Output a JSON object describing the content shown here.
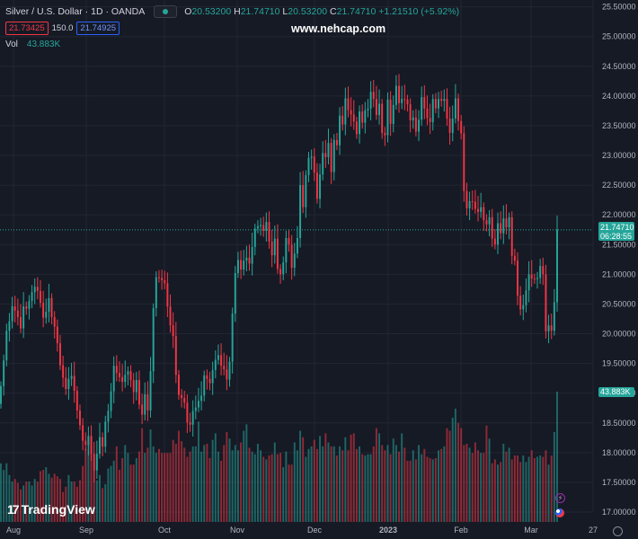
{
  "header": {
    "title": "Silver / U.S. Dollar · 1D · OANDA",
    "ohlc": {
      "open_label": "O",
      "open": "20.53200",
      "high_label": "H",
      "high": "21.74710",
      "low_label": "L",
      "low": "20.53200",
      "close_label": "C",
      "close": "21.74710",
      "change": "+1.21510 (+5.92%)"
    },
    "sell_price": "21.73425",
    "spread": "150.0",
    "buy_price": "21.74925",
    "vol_label": "Vol",
    "vol_value": "43.883K"
  },
  "watermark": "www.nehcap.com",
  "logo_text": "TradingView",
  "tags": {
    "price": "21.74710",
    "countdown": "06:28:55",
    "volume": "43.883K"
  },
  "colors": {
    "up": "#26a69a",
    "down": "#f23645",
    "background": "#161a25",
    "grid": "#232632",
    "axis_text": "#b2b5be"
  },
  "chart_data": {
    "type": "candlestick",
    "title": "Silver / U.S. Dollar · 1D · OANDA",
    "ylim": [
      17.0,
      25.6
    ],
    "y_ticks": [
      "25.50000",
      "25.00000",
      "24.50000",
      "24.00000",
      "23.50000",
      "23.00000",
      "22.50000",
      "22.00000",
      "21.50000",
      "21.00000",
      "20.50000",
      "20.00000",
      "19.50000",
      "19.00000",
      "18.50000",
      "18.00000",
      "17.50000",
      "17.00000"
    ],
    "x_ticks": [
      "Aug",
      "Sep",
      "Oct",
      "Nov",
      "Dec",
      "2023",
      "Feb",
      "Mar",
      "27"
    ],
    "last_price": 21.7471,
    "last_volume": 43883,
    "closes": [
      19.12,
      19.55,
      20.05,
      20.21,
      20.46,
      20.39,
      20.28,
      20.09,
      20.46,
      20.42,
      20.55,
      20.7,
      20.79,
      20.72,
      20.52,
      20.27,
      20.37,
      20.6,
      20.28,
      20.12,
      19.84,
      19.47,
      19.26,
      19.07,
      19.24,
      19.29,
      19.04,
      18.71,
      18.46,
      18.2,
      18.13,
      18.28,
      17.98,
      17.7,
      17.98,
      18.26,
      18.1,
      18.52,
      18.7,
      19.03,
      19.46,
      19.34,
      19.27,
      19.19,
      19.31,
      19.37,
      19.22,
      19.02,
      19.22,
      18.81,
      18.64,
      18.98,
      18.71,
      19.37,
      20.43,
      20.95,
      20.94,
      20.9,
      20.85,
      20.46,
      20.14,
      19.96,
      19.31,
      18.97,
      18.92,
      18.84,
      18.51,
      18.47,
      18.7,
      18.76,
      18.87,
      18.96,
      19.3,
      19.24,
      19.17,
      19.39,
      19.56,
      19.64,
      19.46,
      19.4,
      19.23,
      19.53,
      20.34,
      21.02,
      21.24,
      21.08,
      21.23,
      21.28,
      21.18,
      21.46,
      21.77,
      21.81,
      21.83,
      21.73,
      21.88,
      21.55,
      21.32,
      21.6,
      21.09,
      21.0,
      21.2,
      21.61,
      21.5,
      21.11,
      21.35,
      21.61,
      22.5,
      22.13,
      22.67,
      22.96,
      22.98,
      22.71,
      22.27,
      22.68,
      23.04,
      22.97,
      23.21,
      22.72,
      23.26,
      23.17,
      23.67,
      23.52,
      23.96,
      23.76,
      23.69,
      23.57,
      23.36,
      23.74,
      23.55,
      23.76,
      23.79,
      24.07,
      23.95,
      23.68,
      23.87,
      23.38,
      23.34,
      23.94,
      23.53,
      23.85,
      24.17,
      23.88,
      23.95,
      23.94,
      23.86,
      23.59,
      23.64,
      23.4,
      23.6,
      23.98,
      23.79,
      23.63,
      23.56,
      23.95,
      23.79,
      23.95,
      23.92,
      23.95,
      23.62,
      23.38,
      23.62,
      23.96,
      23.58,
      23.37,
      22.4,
      22.11,
      22.23,
      22.22,
      22.1,
      22.05,
      22.13,
      21.91,
      21.84,
      21.96,
      21.6,
      21.5,
      21.86,
      21.69,
      21.94,
      21.79,
      21.96,
      21.31,
      21.23,
      20.64,
      20.41,
      20.48,
      20.73,
      21.0,
      20.93,
      20.92,
      20.94,
      21.14,
      21.0,
      20.04,
      20.14,
      20.05,
      20.53,
      21.75
    ],
    "volume_rel": [
      0.45,
      0.4,
      0.45,
      0.36,
      0.31,
      0.33,
      0.3,
      0.25,
      0.28,
      0.31,
      0.31,
      0.28,
      0.33,
      0.31,
      0.39,
      0.4,
      0.42,
      0.37,
      0.34,
      0.37,
      0.35,
      0.33,
      0.23,
      0.27,
      0.36,
      0.31,
      0.31,
      0.27,
      0.32,
      0.43,
      0.56,
      0.61,
      0.53,
      0.4,
      0.32,
      0.36,
      0.26,
      0.29,
      0.41,
      0.43,
      0.47,
      0.58,
      0.4,
      0.49,
      0.59,
      0.53,
      0.44,
      0.44,
      0.49,
      0.54,
      0.72,
      0.53,
      0.57,
      0.71,
      0.58,
      0.53,
      0.56,
      0.53,
      0.53,
      0.53,
      0.53,
      0.63,
      0.6,
      0.7,
      0.62,
      0.57,
      0.5,
      0.54,
      0.58,
      0.58,
      0.77,
      0.54,
      0.59,
      0.6,
      0.49,
      0.63,
      0.68,
      0.54,
      0.47,
      0.59,
      0.69,
      0.64,
      0.55,
      0.59,
      0.55,
      0.61,
      0.7,
      0.75,
      0.57,
      0.54,
      0.52,
      0.6,
      0.55,
      0.5,
      0.48,
      0.51,
      0.52,
      0.61,
      0.52,
      0.53,
      0.42,
      0.54,
      0.44,
      0.44,
      0.61,
      0.55,
      0.7,
      0.65,
      0.5,
      0.56,
      0.58,
      0.63,
      0.56,
      0.66,
      0.58,
      0.68,
      0.61,
      0.58,
      0.58,
      0.51,
      0.58,
      0.55,
      0.65,
      0.55,
      0.67,
      0.68,
      0.56,
      0.58,
      0.52,
      0.51,
      0.52,
      0.52,
      0.58,
      0.72,
      0.68,
      0.59,
      0.55,
      0.59,
      0.52,
      0.64,
      0.59,
      0.54,
      0.68,
      0.57,
      0.47,
      0.47,
      0.55,
      0.48,
      0.59,
      0.52,
      0.56,
      0.5,
      0.49,
      0.48,
      0.49,
      0.55,
      0.56,
      0.58,
      0.72,
      0.7,
      0.8,
      0.87,
      0.76,
      0.72,
      0.59,
      0.6,
      0.57,
      0.53,
      0.61,
      0.55,
      0.53,
      0.53,
      0.74,
      0.64,
      0.45,
      0.48,
      0.44,
      0.46,
      0.6,
      0.54,
      0.57,
      0.48,
      0.51,
      0.51,
      0.46,
      0.51,
      0.46,
      0.5,
      0.55,
      0.49,
      0.5,
      0.51,
      0.5,
      0.55,
      0.44,
      0.51,
      0.69,
      1.0
    ]
  }
}
